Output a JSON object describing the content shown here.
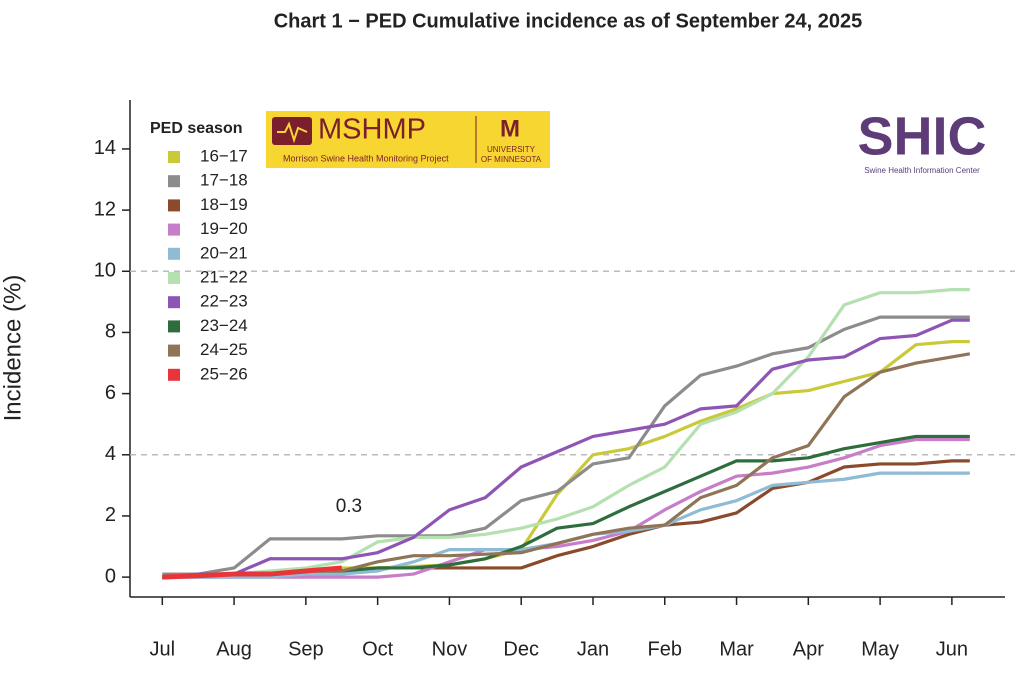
{
  "chart_data": {
    "type": "line",
    "title": "Chart 1 − PED Cumulative incidence as of September 24, 2025",
    "y_label": "Incidence (%)",
    "annotation": {
      "text": "0.3",
      "x": 2.6,
      "y": 0.3
    },
    "legend_title": "PED season",
    "legend_position": "top-left",
    "x": [
      0,
      0.5,
      1,
      1.5,
      2,
      2.5,
      3,
      3.5,
      4,
      4.5,
      5,
      5.5,
      6,
      6.5,
      7,
      7.5,
      8,
      8.5,
      9,
      9.5,
      10,
      10.5,
      11,
      11.25
    ],
    "xlim": [
      -0.45,
      11.74
    ],
    "xticks": [
      {
        "value": 0,
        "label": "Jul"
      },
      {
        "value": 1,
        "label": "Aug"
      },
      {
        "value": 2,
        "label": "Sep"
      },
      {
        "value": 3,
        "label": "Oct"
      },
      {
        "value": 4,
        "label": "Nov"
      },
      {
        "value": 5,
        "label": "Dec"
      },
      {
        "value": 6,
        "label": "Jan"
      },
      {
        "value": 7,
        "label": "Feb"
      },
      {
        "value": 8,
        "label": "Mar"
      },
      {
        "value": 9,
        "label": "Apr"
      },
      {
        "value": 10,
        "label": "May"
      },
      {
        "value": 11,
        "label": "Jun"
      }
    ],
    "ylim": [
      -0.65,
      15.6
    ],
    "yticks": [
      0,
      2,
      4,
      6,
      8,
      10,
      12,
      14
    ],
    "reference_lines": [
      4,
      10
    ],
    "series": [
      {
        "name": "16−17",
        "color": "#c9c93a",
        "values": [
          0,
          0.1,
          0.1,
          0.1,
          0.2,
          0.3,
          0.3,
          0.35,
          0.4,
          0.6,
          0.9,
          2.7,
          4.0,
          4.2,
          4.6,
          5.1,
          5.5,
          6.0,
          6.1,
          6.4,
          6.7,
          7.6,
          7.7,
          7.7
        ]
      },
      {
        "name": "17−18",
        "color": "#8c8c8c",
        "values": [
          0.1,
          0.1,
          0.3,
          1.25,
          1.25,
          1.25,
          1.35,
          1.35,
          1.35,
          1.6,
          2.5,
          2.8,
          3.7,
          3.9,
          5.6,
          6.6,
          6.9,
          7.3,
          7.5,
          8.1,
          8.5,
          8.5,
          8.5,
          8.5
        ]
      },
      {
        "name": "18−19",
        "color": "#8b4a2b",
        "values": [
          0,
          0.05,
          0.1,
          0.1,
          0.2,
          0.2,
          0.3,
          0.3,
          0.3,
          0.3,
          0.3,
          0.7,
          1.0,
          1.4,
          1.7,
          1.8,
          2.1,
          2.9,
          3.1,
          3.6,
          3.7,
          3.7,
          3.8,
          3.8
        ]
      },
      {
        "name": "19−20",
        "color": "#c77dc7",
        "values": [
          0,
          0,
          0,
          0,
          0,
          0,
          0,
          0.1,
          0.5,
          0.9,
          0.9,
          1.0,
          1.2,
          1.5,
          2.2,
          2.8,
          3.3,
          3.4,
          3.6,
          3.9,
          4.3,
          4.5,
          4.5,
          4.5
        ]
      },
      {
        "name": "20−21",
        "color": "#8fbcd4",
        "values": [
          0,
          0,
          0,
          0,
          0.1,
          0.1,
          0.2,
          0.5,
          0.9,
          0.9,
          0.9,
          1.1,
          1.4,
          1.5,
          1.7,
          2.2,
          2.5,
          3.0,
          3.1,
          3.2,
          3.4,
          3.4,
          3.4,
          3.4
        ]
      },
      {
        "name": "21−22",
        "color": "#b5e0b0",
        "values": [
          0,
          0.05,
          0.1,
          0.2,
          0.3,
          0.5,
          1.15,
          1.3,
          1.3,
          1.4,
          1.6,
          1.9,
          2.3,
          3.0,
          3.6,
          5.0,
          5.4,
          6.0,
          7.2,
          8.9,
          9.3,
          9.3,
          9.4,
          9.4
        ]
      },
      {
        "name": "22−23",
        "color": "#8e55b5",
        "values": [
          0,
          0.1,
          0.1,
          0.6,
          0.6,
          0.6,
          0.8,
          1.3,
          2.2,
          2.6,
          3.6,
          4.1,
          4.6,
          4.8,
          5.0,
          5.5,
          5.6,
          6.8,
          7.1,
          7.2,
          7.8,
          7.9,
          8.4,
          8.4
        ]
      },
      {
        "name": "23−24",
        "color": "#2e6e3e",
        "values": [
          0,
          0.05,
          0.1,
          0.1,
          0.2,
          0.2,
          0.3,
          0.3,
          0.4,
          0.6,
          1.0,
          1.6,
          1.75,
          2.3,
          2.8,
          3.3,
          3.8,
          3.8,
          3.9,
          4.2,
          4.4,
          4.6,
          4.6,
          4.6
        ]
      },
      {
        "name": "24−25",
        "color": "#8f7458",
        "values": [
          0,
          0.05,
          0.1,
          0.1,
          0.2,
          0.2,
          0.5,
          0.7,
          0.7,
          0.75,
          0.8,
          1.1,
          1.4,
          1.6,
          1.7,
          2.6,
          3.0,
          3.9,
          4.3,
          5.9,
          6.7,
          7.0,
          7.2,
          7.3
        ]
      },
      {
        "name": "25−26",
        "color": "#e8353a",
        "width": 5,
        "values": [
          0,
          0.05,
          0.1,
          0.1,
          0.2,
          0.3,
          null,
          null,
          null,
          null,
          null,
          null,
          null,
          null,
          null,
          null,
          null,
          null,
          null,
          null,
          null,
          null,
          null,
          null
        ]
      }
    ]
  },
  "logos": {
    "mshmp": "MSHMP",
    "mshmp_subtitle": "Morrison Swine Health Monitoring Project",
    "umn_1": "UNIVERSITY",
    "umn_2": "OF MINNESOTA",
    "shic": "SHIC",
    "shic_subtitle": "Swine Health Information Center"
  }
}
